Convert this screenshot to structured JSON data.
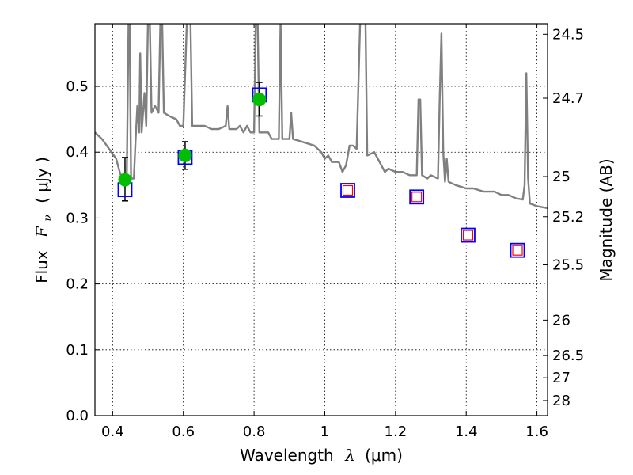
{
  "chart_data": {
    "type": "scatter",
    "xlabel_text": "Wavelength",
    "xlabel_symbol": "λ",
    "xlabel_unit": "(μm)",
    "ylabel_text": "Flux",
    "ylabel_symbol": "F",
    "ylabel_symbol_sub": "ν",
    "ylabel_unit": "( μJy )",
    "y2label": "Magnitude (AB)",
    "xlim": [
      0.35,
      1.63
    ],
    "ylim": [
      0.0,
      0.595
    ],
    "grid": true,
    "x_ticks": [
      0.4,
      0.6,
      0.8,
      1.0,
      1.2,
      1.4,
      1.6
    ],
    "x_tick_labels": [
      "0.4",
      "0.6",
      "0.8",
      "1",
      "1.2",
      "1.4",
      "1.6"
    ],
    "y_ticks": [
      0.0,
      0.1,
      0.2,
      0.3,
      0.4,
      0.5
    ],
    "y_tick_labels": [
      "0.0",
      "0.1",
      "0.2",
      "0.3",
      "0.4",
      "0.5"
    ],
    "y2_ticks": [
      {
        "label": "24.5",
        "flux": 0.579
      },
      {
        "label": "24.7",
        "flux": 0.482
      },
      {
        "label": "25",
        "flux": 0.363
      },
      {
        "label": "25.2",
        "flux": 0.302
      },
      {
        "label": "25.5",
        "flux": 0.229
      },
      {
        "label": "26",
        "flux": 0.145
      },
      {
        "label": "26.5",
        "flux": 0.0912
      },
      {
        "label": "27",
        "flux": 0.0575
      },
      {
        "label": "28",
        "flux": 0.0229
      }
    ],
    "series": [
      {
        "name": "model-sed",
        "style": "line",
        "color": "#808080",
        "points": [
          [
            0.35,
            0.43
          ],
          [
            0.37,
            0.42
          ],
          [
            0.39,
            0.405
          ],
          [
            0.41,
            0.39
          ],
          [
            0.42,
            0.37
          ],
          [
            0.43,
            0.355
          ],
          [
            0.435,
            0.35
          ],
          [
            0.44,
            0.36
          ],
          [
            0.445,
            0.6
          ],
          [
            0.448,
            0.6
          ],
          [
            0.452,
            0.36
          ],
          [
            0.46,
            0.36
          ],
          [
            0.465,
            0.42
          ],
          [
            0.47,
            0.47
          ],
          [
            0.475,
            0.43
          ],
          [
            0.478,
            0.55
          ],
          [
            0.482,
            0.43
          ],
          [
            0.49,
            0.49
          ],
          [
            0.495,
            0.44
          ],
          [
            0.5,
            0.6
          ],
          [
            0.505,
            0.6
          ],
          [
            0.51,
            0.46
          ],
          [
            0.52,
            0.47
          ],
          [
            0.53,
            0.46
          ],
          [
            0.535,
            0.6
          ],
          [
            0.54,
            0.6
          ],
          [
            0.545,
            0.46
          ],
          [
            0.56,
            0.455
          ],
          [
            0.58,
            0.45
          ],
          [
            0.59,
            0.44
          ],
          [
            0.6,
            0.44
          ],
          [
            0.61,
            0.6
          ],
          [
            0.615,
            0.6
          ],
          [
            0.62,
            0.6
          ],
          [
            0.625,
            0.44
          ],
          [
            0.64,
            0.44
          ],
          [
            0.66,
            0.44
          ],
          [
            0.68,
            0.435
          ],
          [
            0.7,
            0.435
          ],
          [
            0.72,
            0.44
          ],
          [
            0.725,
            0.47
          ],
          [
            0.73,
            0.435
          ],
          [
            0.75,
            0.435
          ],
          [
            0.76,
            0.44
          ],
          [
            0.77,
            0.43
          ],
          [
            0.78,
            0.44
          ],
          [
            0.79,
            0.43
          ],
          [
            0.8,
            0.43
          ],
          [
            0.805,
            0.6
          ],
          [
            0.81,
            0.6
          ],
          [
            0.815,
            0.43
          ],
          [
            0.83,
            0.43
          ],
          [
            0.84,
            0.43
          ],
          [
            0.85,
            0.42
          ],
          [
            0.87,
            0.42
          ],
          [
            0.875,
            0.6
          ],
          [
            0.88,
            0.42
          ],
          [
            0.9,
            0.42
          ],
          [
            0.905,
            0.46
          ],
          [
            0.91,
            0.42
          ],
          [
            0.94,
            0.415
          ],
          [
            0.97,
            0.41
          ],
          [
            0.99,
            0.4
          ],
          [
            1.0,
            0.39
          ],
          [
            1.01,
            0.395
          ],
          [
            1.02,
            0.385
          ],
          [
            1.04,
            0.385
          ],
          [
            1.05,
            0.37
          ],
          [
            1.06,
            0.38
          ],
          [
            1.07,
            0.41
          ],
          [
            1.08,
            0.41
          ],
          [
            1.09,
            0.405
          ],
          [
            1.1,
            0.6
          ],
          [
            1.115,
            0.6
          ],
          [
            1.12,
            0.395
          ],
          [
            1.14,
            0.4
          ],
          [
            1.15,
            0.39
          ],
          [
            1.16,
            0.38
          ],
          [
            1.17,
            0.37
          ],
          [
            1.18,
            0.375
          ],
          [
            1.2,
            0.37
          ],
          [
            1.22,
            0.37
          ],
          [
            1.24,
            0.365
          ],
          [
            1.26,
            0.365
          ],
          [
            1.265,
            0.48
          ],
          [
            1.27,
            0.48
          ],
          [
            1.275,
            0.365
          ],
          [
            1.29,
            0.36
          ],
          [
            1.3,
            0.365
          ],
          [
            1.32,
            0.36
          ],
          [
            1.325,
            0.48
          ],
          [
            1.33,
            0.58
          ],
          [
            1.335,
            0.4
          ],
          [
            1.34,
            0.355
          ],
          [
            1.345,
            0.39
          ],
          [
            1.35,
            0.355
          ],
          [
            1.37,
            0.35
          ],
          [
            1.4,
            0.345
          ],
          [
            1.42,
            0.345
          ],
          [
            1.45,
            0.34
          ],
          [
            1.48,
            0.34
          ],
          [
            1.5,
            0.335
          ],
          [
            1.52,
            0.335
          ],
          [
            1.54,
            0.33
          ],
          [
            1.56,
            0.328
          ],
          [
            1.565,
            0.35
          ],
          [
            1.57,
            0.52
          ],
          [
            1.575,
            0.36
          ],
          [
            1.58,
            0.322
          ],
          [
            1.6,
            0.318
          ],
          [
            1.63,
            0.315
          ]
        ]
      },
      {
        "name": "observed-flux",
        "style": "marker-circle",
        "color": "#00bf00",
        "points": [
          {
            "x": 0.435,
            "y": 0.358,
            "yerr_low": 0.326,
            "yerr_high": 0.392
          },
          {
            "x": 0.605,
            "y": 0.395,
            "yerr_low": 0.374,
            "yerr_high": 0.416
          },
          {
            "x": 0.815,
            "y": 0.48,
            "yerr_low": 0.455,
            "yerr_high": 0.506
          }
        ]
      },
      {
        "name": "model-flux",
        "style": "marker-square-blue",
        "color": "#0000ff",
        "points": [
          {
            "x": 0.435,
            "y": 0.343
          },
          {
            "x": 0.605,
            "y": 0.392
          },
          {
            "x": 0.815,
            "y": 0.487
          },
          {
            "x": 1.065,
            "y": 0.342
          },
          {
            "x": 1.26,
            "y": 0.332
          },
          {
            "x": 1.405,
            "y": 0.274
          },
          {
            "x": 1.545,
            "y": 0.251
          }
        ]
      },
      {
        "name": "predicted-flux",
        "style": "marker-square-red",
        "color": "#ff0000",
        "points": [
          {
            "x": 1.065,
            "y": 0.342
          },
          {
            "x": 1.26,
            "y": 0.332
          },
          {
            "x": 1.405,
            "y": 0.274
          },
          {
            "x": 1.545,
            "y": 0.251
          }
        ]
      }
    ]
  }
}
